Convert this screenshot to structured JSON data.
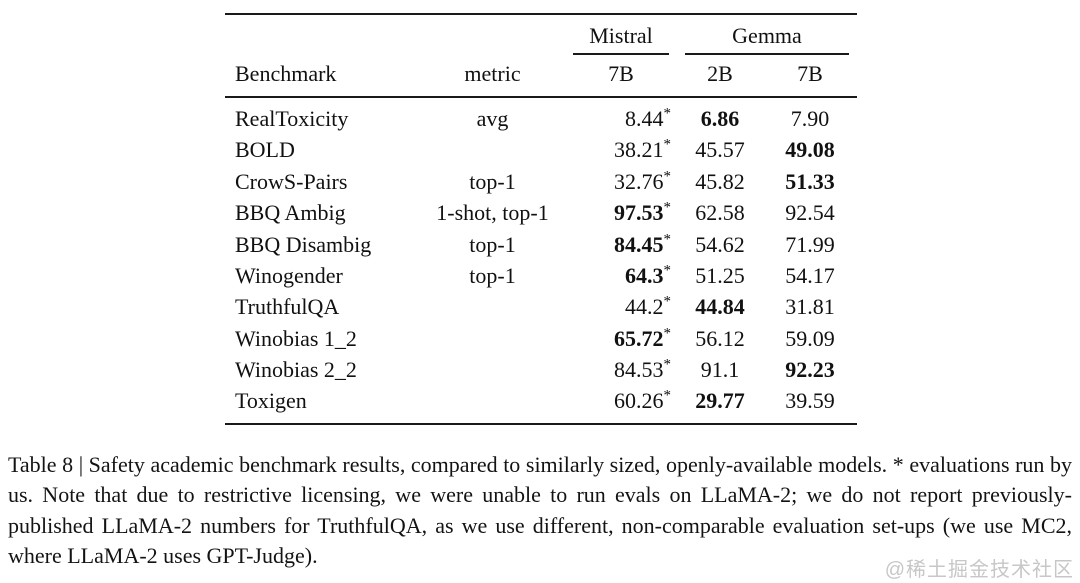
{
  "table": {
    "col_groups": {
      "mistral": "Mistral",
      "gemma": "Gemma"
    },
    "headers": {
      "benchmark": "Benchmark",
      "metric": "metric",
      "mistral_7b": "7B",
      "gemma_2b": "2B",
      "gemma_7b": "7B"
    },
    "rows": [
      {
        "benchmark": "RealToxicity",
        "metric": "avg",
        "mistral_7b": {
          "v": "8.44",
          "star": "*",
          "bold": false
        },
        "gemma_2b": {
          "v": "6.86",
          "star": "",
          "bold": true
        },
        "gemma_7b": {
          "v": "7.90",
          "star": "",
          "bold": false
        }
      },
      {
        "benchmark": "BOLD",
        "metric": "",
        "mistral_7b": {
          "v": "38.21",
          "star": "*",
          "bold": false
        },
        "gemma_2b": {
          "v": "45.57",
          "star": "",
          "bold": false
        },
        "gemma_7b": {
          "v": "49.08",
          "star": "",
          "bold": true
        }
      },
      {
        "benchmark": "CrowS-Pairs",
        "metric": "top-1",
        "mistral_7b": {
          "v": "32.76",
          "star": "*",
          "bold": false
        },
        "gemma_2b": {
          "v": "45.82",
          "star": "",
          "bold": false
        },
        "gemma_7b": {
          "v": "51.33",
          "star": "",
          "bold": true
        }
      },
      {
        "benchmark": "BBQ Ambig",
        "metric": "1-shot, top-1",
        "mistral_7b": {
          "v": "97.53",
          "star": "*",
          "bold": true
        },
        "gemma_2b": {
          "v": "62.58",
          "star": "",
          "bold": false
        },
        "gemma_7b": {
          "v": "92.54",
          "star": "",
          "bold": false
        }
      },
      {
        "benchmark": "BBQ Disambig",
        "metric": "top-1",
        "mistral_7b": {
          "v": "84.45",
          "star": "*",
          "bold": true
        },
        "gemma_2b": {
          "v": "54.62",
          "star": "",
          "bold": false
        },
        "gemma_7b": {
          "v": "71.99",
          "star": "",
          "bold": false
        }
      },
      {
        "benchmark": "Winogender",
        "metric": "top-1",
        "mistral_7b": {
          "v": "64.3",
          "star": "*",
          "bold": true
        },
        "gemma_2b": {
          "v": "51.25",
          "star": "",
          "bold": false
        },
        "gemma_7b": {
          "v": "54.17",
          "star": "",
          "bold": false
        }
      },
      {
        "benchmark": "TruthfulQA",
        "metric": "",
        "mistral_7b": {
          "v": "44.2",
          "star": "*",
          "bold": false
        },
        "gemma_2b": {
          "v": "44.84",
          "star": "",
          "bold": true
        },
        "gemma_7b": {
          "v": "31.81",
          "star": "",
          "bold": false
        }
      },
      {
        "benchmark": "Winobias 1_2",
        "metric": "",
        "mistral_7b": {
          "v": "65.72",
          "star": "*",
          "bold": true
        },
        "gemma_2b": {
          "v": "56.12",
          "star": "",
          "bold": false
        },
        "gemma_7b": {
          "v": "59.09",
          "star": "",
          "bold": false
        }
      },
      {
        "benchmark": "Winobias 2_2",
        "metric": "",
        "mistral_7b": {
          "v": "84.53",
          "star": "*",
          "bold": false
        },
        "gemma_2b": {
          "v": "91.1",
          "star": "",
          "bold": false
        },
        "gemma_7b": {
          "v": "92.23",
          "star": "",
          "bold": true
        }
      },
      {
        "benchmark": "Toxigen",
        "metric": "",
        "mistral_7b": {
          "v": "60.26",
          "star": "*",
          "bold": false
        },
        "gemma_2b": {
          "v": "29.77",
          "star": "",
          "bold": true
        },
        "gemma_7b": {
          "v": "39.59",
          "star": "",
          "bold": false
        }
      }
    ]
  },
  "caption": {
    "text": "Table 8 | Safety academic benchmark results, compared to similarly sized, openly-available models. * evaluations run by us. Note that due to restrictive licensing, we were unable to run evals on LLaMA-2; we do not report previously-published LLaMA-2 numbers for TruthfulQA, as we use different, non-comparable evaluation set-ups (we use MC2, where LLaMA-2 uses GPT-Judge)."
  },
  "watermark": "@稀土掘金技术社区"
}
